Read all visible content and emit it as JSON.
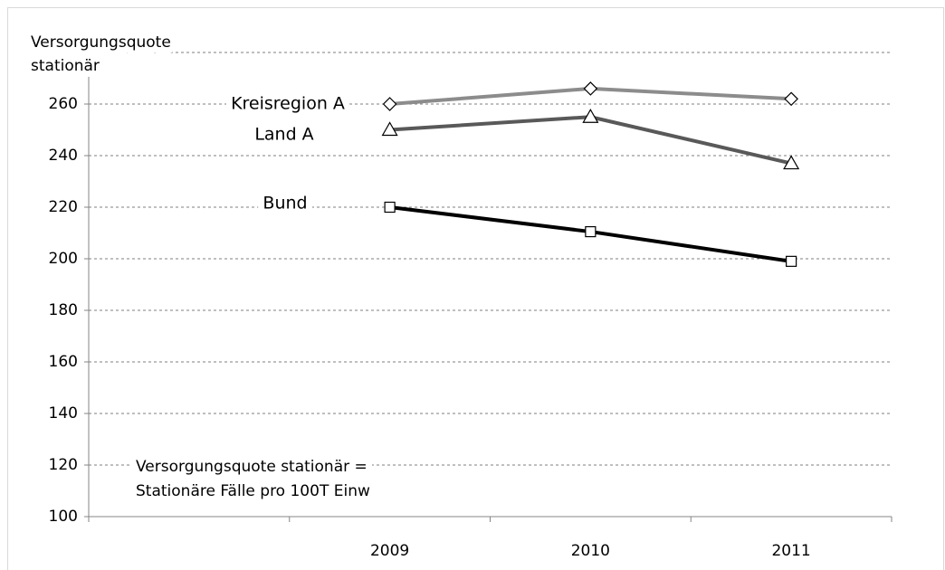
{
  "chart_data": {
    "type": "line",
    "y_label": [
      "Versorgungsquote",
      "stationär"
    ],
    "annotation": [
      "Versorgungsquote stationär =",
      "Stationäre Fälle pro 100T Einw"
    ],
    "categories": [
      null,
      "2009",
      "2010",
      "2011"
    ],
    "series": [
      {
        "name": "Kreisregion  A",
        "color": "#8c8c8c",
        "marker": "diamond",
        "values": [
          null,
          260,
          266,
          262
        ]
      },
      {
        "name": "Land A",
        "color": "#595959",
        "marker": "triangle",
        "values": [
          null,
          250,
          255,
          237
        ]
      },
      {
        "name": "Bund",
        "color": "#000000",
        "marker": "square",
        "values": [
          null,
          220,
          210.5,
          199
        ]
      }
    ],
    "ylim": [
      100,
      280
    ],
    "yticks": [
      100,
      120,
      140,
      160,
      180,
      200,
      220,
      240,
      260
    ],
    "grid": true
  }
}
